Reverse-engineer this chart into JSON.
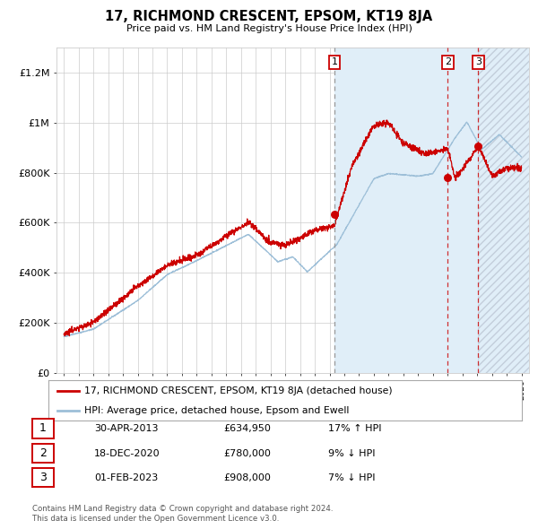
{
  "title": "17, RICHMOND CRESCENT, EPSOM, KT19 8JA",
  "subtitle": "Price paid vs. HM Land Registry's House Price Index (HPI)",
  "legend_label_red": "17, RICHMOND CRESCENT, EPSOM, KT19 8JA (detached house)",
  "legend_label_blue": "HPI: Average price, detached house, Epsom and Ewell",
  "footer_line1": "Contains HM Land Registry data © Crown copyright and database right 2024.",
  "footer_line2": "This data is licensed under the Open Government Licence v3.0.",
  "table_rows": [
    {
      "num": "1",
      "date": "30-APR-2013",
      "price": "£634,950",
      "hpi": "17% ↑ HPI"
    },
    {
      "num": "2",
      "date": "18-DEC-2020",
      "price": "£780,000",
      "hpi": "9% ↓ HPI"
    },
    {
      "num": "3",
      "date": "01-FEB-2023",
      "price": "£908,000",
      "hpi": "7% ↓ HPI"
    }
  ],
  "vline1_x": 2013.33,
  "vline2_x": 2021.0,
  "vline3_x": 2023.08,
  "point1": [
    2013.33,
    634950
  ],
  "point2": [
    2021.0,
    780000
  ],
  "point3": [
    2023.08,
    908000
  ],
  "shade_start": 2013.33,
  "hatch_start": 2023.08,
  "hatch_end": 2026.5,
  "ylim": [
    0,
    1300000
  ],
  "xlim": [
    1994.5,
    2026.5
  ],
  "yticks": [
    0,
    200000,
    400000,
    600000,
    800000,
    1000000,
    1200000
  ],
  "ytick_labels": [
    "£0",
    "£200K",
    "£400K",
    "£600K",
    "£800K",
    "£1M",
    "£1.2M"
  ],
  "red_color": "#cc0000",
  "blue_color": "#9dbfd8",
  "shade_color": "#ddeeff",
  "background_color": "#ffffff",
  "grid_color": "#cccccc"
}
